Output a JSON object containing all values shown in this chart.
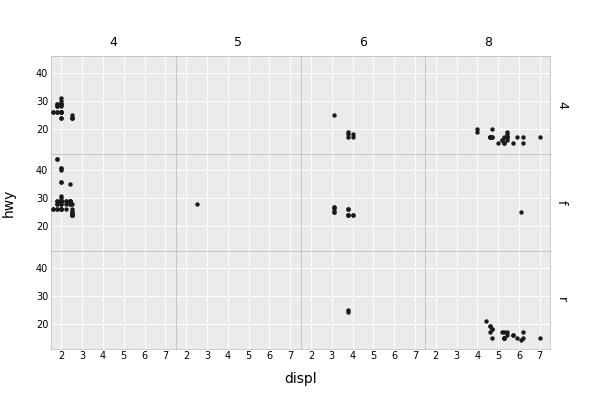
{
  "title_x": "displ",
  "title_y": "hwy",
  "col_labels": [
    "4",
    "5",
    "6",
    "8"
  ],
  "row_labels": [
    "4",
    "f",
    "r"
  ],
  "xlim": [
    1.5,
    7.5
  ],
  "ylim": [
    11,
    46
  ],
  "xticks": [
    2,
    3,
    4,
    5,
    6,
    7
  ],
  "yticks": [
    20,
    30,
    40
  ],
  "bg_color": "#EBEBEB",
  "header_color": "#D0D0D0",
  "grid_color": "#FFFFFF",
  "point_color": "#1A1A1A",
  "point_size": 10,
  "data": {
    "4_4": {
      "displ": [
        1.8,
        1.8,
        2.0,
        2.0,
        2.0,
        2.0,
        2.0,
        2.0,
        2.0,
        2.0,
        2.5,
        2.5,
        2.5,
        2.5,
        1.6,
        1.6,
        1.8,
        1.8,
        1.8,
        1.8,
        2.0,
        2.0,
        2.0,
        2.0,
        2.0,
        2.0
      ],
      "hwy": [
        29,
        29,
        31,
        30,
        26,
        26,
        26,
        26,
        24,
        24,
        25,
        24,
        24,
        24,
        26,
        26,
        28,
        26,
        28,
        26,
        29,
        29,
        28,
        29,
        26,
        26
      ]
    },
    "5_4": {
      "displ": [],
      "hwy": []
    },
    "6_4": {
      "displ": [
        3.1,
        3.8,
        3.8,
        3.8,
        4.0,
        4.0
      ],
      "hwy": [
        25,
        19,
        18,
        17,
        18,
        17
      ]
    },
    "8_4": {
      "displ": [
        4.7,
        4.7,
        4.7,
        5.2,
        5.2,
        5.7,
        5.9,
        4.6,
        4.6,
        4.6,
        5.4,
        5.4,
        5.4,
        4.6,
        5.4,
        5.4,
        5.4,
        4.0,
        4.0,
        4.6,
        5.0,
        6.2,
        6.2,
        7.0,
        5.3,
        5.3,
        5.3
      ],
      "hwy": [
        20,
        17,
        17,
        16,
        16,
        15,
        17,
        17,
        17,
        17,
        17,
        17,
        16,
        17,
        18,
        17,
        19,
        20,
        19,
        17,
        15,
        15,
        17,
        17,
        15,
        15,
        17
      ]
    },
    "4_f": {
      "displ": [
        1.8,
        1.8,
        2.0,
        2.0,
        2.0,
        2.0,
        2.5,
        2.5,
        2.5,
        2.5,
        2.5,
        2.5,
        1.6,
        1.6,
        1.8,
        1.8,
        1.8,
        1.8,
        2.0,
        2.0,
        2.0,
        2.0,
        2.0,
        2.0,
        2.0,
        2.0,
        2.0,
        2.2,
        2.2,
        2.2,
        2.2,
        2.4,
        2.4,
        2.4,
        2.4,
        2.5,
        2.5,
        2.5,
        2.5,
        1.8,
        1.8,
        2.0,
        2.0,
        2.0,
        2.0,
        2.0,
        2.4,
        2.4,
        2.4,
        2.4
      ],
      "hwy": [
        29,
        29,
        31,
        30,
        26,
        26,
        25,
        24,
        24,
        24,
        25,
        24,
        26,
        26,
        28,
        26,
        28,
        26,
        29,
        29,
        28,
        29,
        26,
        26,
        29,
        29,
        28,
        29,
        29,
        26,
        28,
        29,
        28,
        29,
        29,
        28,
        26,
        25,
        24,
        44,
        44,
        41,
        41,
        40,
        36,
        36,
        29,
        29,
        28,
        35
      ]
    },
    "5_f": {
      "displ": [
        2.5
      ],
      "hwy": [
        28
      ]
    },
    "6_f": {
      "displ": [
        3.1,
        3.1,
        3.1,
        3.1,
        3.1,
        3.8,
        3.8,
        3.8,
        3.8,
        3.8,
        4.0,
        4.0
      ],
      "hwy": [
        27,
        27,
        25,
        25,
        26,
        24,
        24,
        24,
        26,
        26,
        24,
        24
      ]
    },
    "8_f": {
      "displ": [
        6.1
      ],
      "hwy": [
        25
      ]
    },
    "4_r": {
      "displ": [],
      "hwy": []
    },
    "5_r": {
      "displ": [],
      "hwy": []
    },
    "6_r": {
      "displ": [
        3.8,
        3.8
      ],
      "hwy": [
        25,
        24
      ]
    },
    "8_r": {
      "displ": [
        4.4,
        4.7,
        4.7,
        5.2,
        5.7,
        5.9,
        4.6,
        4.6,
        4.6,
        5.4,
        5.4,
        4.7,
        5.7,
        6.1,
        6.2,
        6.2,
        7.0,
        5.3,
        5.3,
        5.3,
        5.3,
        5.3
      ],
      "hwy": [
        21,
        18,
        18,
        17,
        16,
        15,
        19,
        19,
        17,
        17,
        16,
        15,
        16,
        14,
        15,
        17,
        15,
        15,
        17,
        15,
        15,
        15
      ]
    }
  }
}
